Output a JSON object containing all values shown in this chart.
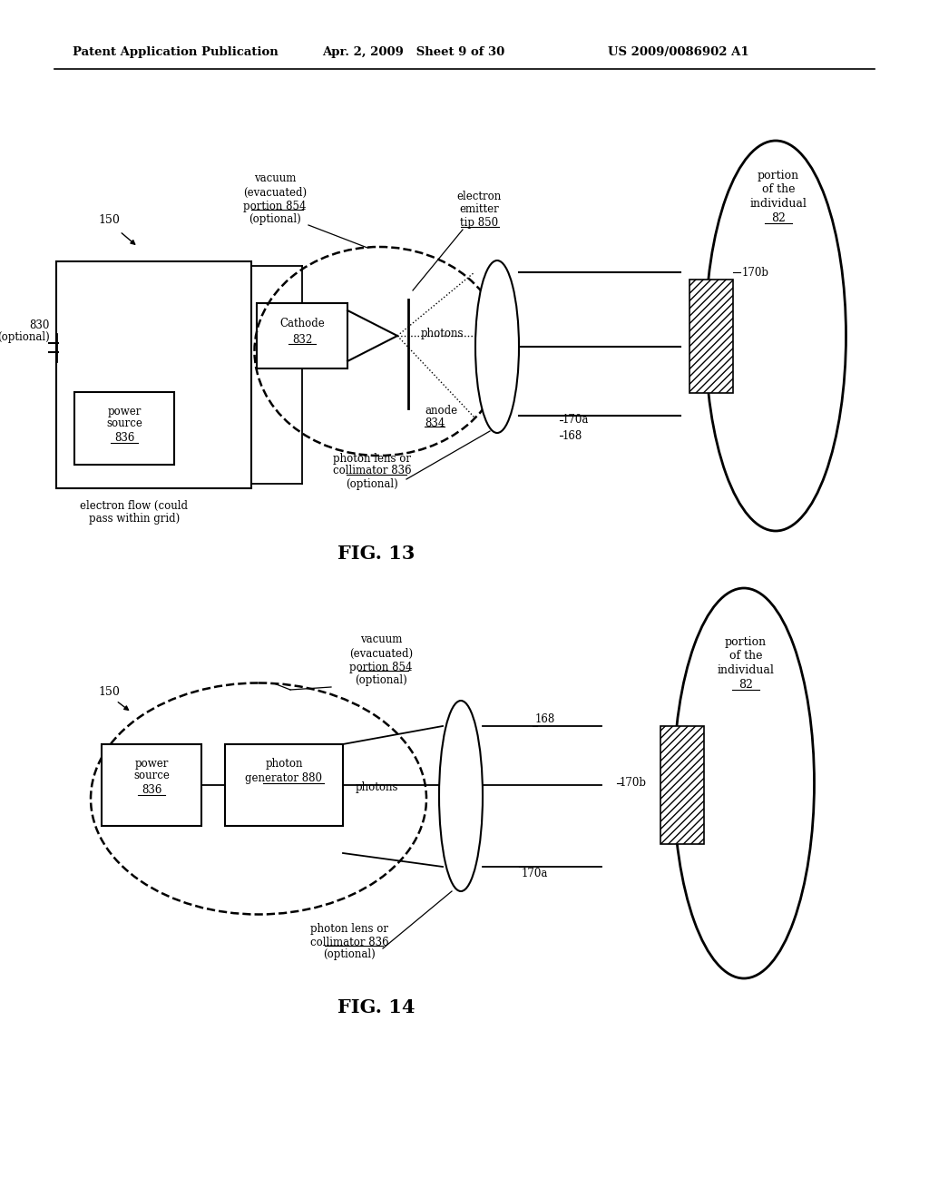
{
  "bg_color": "#ffffff",
  "header_left": "Patent Application Publication",
  "header_mid": "Apr. 2, 2009   Sheet 9 of 30",
  "header_right": "US 2009/0086902 A1",
  "fig13_label": "FIG. 13",
  "fig14_label": "FIG. 14"
}
